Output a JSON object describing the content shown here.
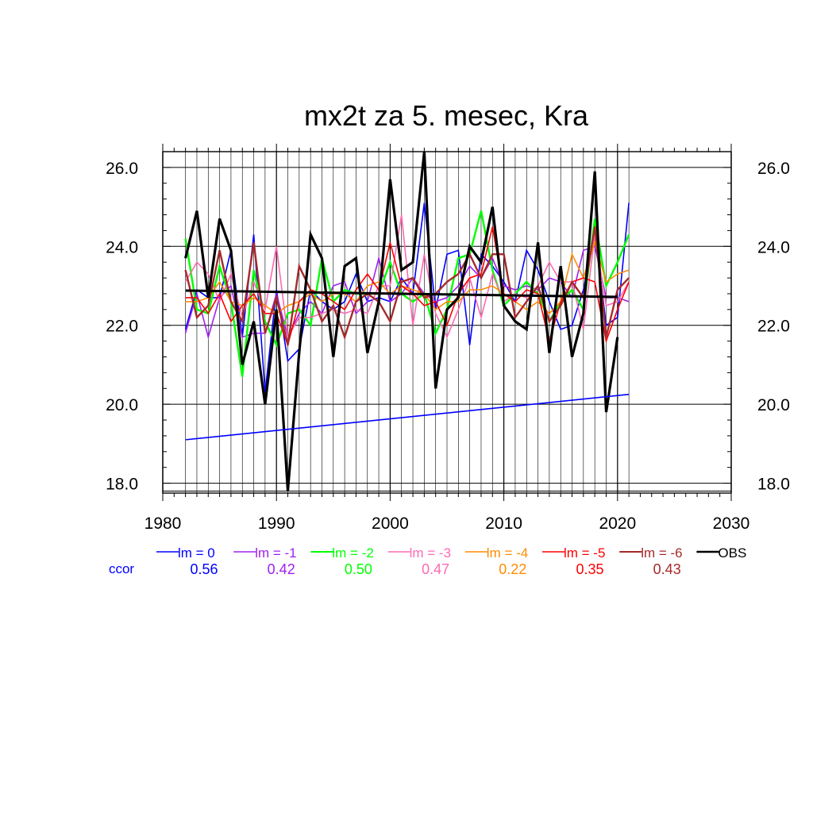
{
  "chart_data": {
    "type": "line",
    "title": "mx2t za 5. mesec, Kra",
    "xlabel": "",
    "ylabel": "",
    "xlim": [
      1980,
      2030
    ],
    "ylim": [
      17.75,
      26.4
    ],
    "x_ticks": [
      1980,
      1990,
      2000,
      2010,
      2020,
      2030
    ],
    "y_ticks": [
      18.0,
      20.0,
      22.0,
      24.0,
      26.0
    ],
    "y_tick_labels": [
      "18.0",
      "20.0",
      "22.0",
      "24.0",
      "26.0"
    ],
    "grid": true,
    "legend_position": "bottom",
    "ccor_label": "ccor",
    "x": [
      1982,
      1983,
      1984,
      1985,
      1986,
      1987,
      1988,
      1989,
      1990,
      1991,
      1992,
      1993,
      1994,
      1995,
      1996,
      1997,
      1998,
      1999,
      2000,
      2001,
      2002,
      2003,
      2004,
      2005,
      2006,
      2007,
      2008,
      2009,
      2010,
      2011,
      2012,
      2013,
      2014,
      2015,
      2016,
      2017,
      2018,
      2019,
      2020,
      2021
    ],
    "series": [
      {
        "name": "lm = 0",
        "color": "#0000ff",
        "ccor": "0.56",
        "width": 1.6,
        "values": [
          21.9,
          22.9,
          22.7,
          22.7,
          23.9,
          21.7,
          24.3,
          20.3,
          22.9,
          21.1,
          21.4,
          22.9,
          22.6,
          22.4,
          22.6,
          23.3,
          22.6,
          22.7,
          22.6,
          23.2,
          22.8,
          25.1,
          22.4,
          23.8,
          23.9,
          21.5,
          23.8,
          23.5,
          23.1,
          22.6,
          23.9,
          23.4,
          22.6,
          21.9,
          22.0,
          22.9,
          24.4,
          22.0,
          22.2,
          25.1
        ]
      },
      {
        "name": "lm = -1",
        "color": "#a020f0",
        "ccor": "0.42",
        "width": 1.6,
        "values": [
          21.8,
          22.8,
          21.7,
          22.7,
          23.0,
          21.7,
          21.8,
          21.8,
          22.8,
          21.7,
          22.3,
          22.6,
          22.3,
          23.0,
          23.1,
          22.3,
          22.6,
          23.7,
          22.6,
          22.8,
          23.2,
          22.8,
          22.6,
          22.7,
          23.0,
          23.5,
          23.2,
          23.7,
          23.0,
          22.9,
          23.0,
          22.9,
          23.2,
          23.1,
          22.7,
          23.9,
          24.0,
          22.7,
          22.7,
          22.6
        ]
      },
      {
        "name": "lm = -2",
        "color": "#00ff00",
        "ccor": "0.50",
        "width": 2.4,
        "values": [
          24.2,
          22.4,
          22.3,
          23.5,
          22.6,
          20.7,
          23.4,
          22.1,
          21.5,
          22.3,
          22.4,
          22.0,
          23.7,
          22.6,
          22.9,
          22.8,
          22.8,
          22.8,
          23.6,
          22.8,
          22.6,
          22.8,
          21.8,
          22.4,
          23.7,
          23.8,
          24.9,
          23.4,
          22.5,
          22.8,
          23.1,
          22.8,
          22.1,
          22.6,
          22.9,
          22.4,
          24.7,
          23.0,
          23.6,
          24.3
        ]
      },
      {
        "name": "lm = -3",
        "color": "#ff69b4",
        "ccor": "0.47",
        "width": 1.6,
        "values": [
          23.1,
          23.6,
          23.3,
          22.6,
          23.3,
          22.2,
          23.1,
          22.4,
          24.0,
          21.7,
          22.2,
          22.2,
          22.3,
          22.4,
          22.3,
          22.4,
          22.3,
          23.0,
          23.0,
          24.8,
          22.0,
          23.8,
          22.3,
          21.7,
          22.4,
          23.2,
          22.2,
          23.3,
          22.6,
          22.8,
          22.7,
          23.0,
          23.6,
          23.1,
          23.1,
          21.9,
          24.3,
          22.5,
          22.6,
          23.1
        ]
      },
      {
        "name": "lm = -4",
        "color": "#ff8c00",
        "ccor": "0.22",
        "width": 1.6,
        "values": [
          22.6,
          22.6,
          22.7,
          23.1,
          22.6,
          22.5,
          22.7,
          22.5,
          22.3,
          22.5,
          22.6,
          22.8,
          22.6,
          22.8,
          22.8,
          22.6,
          23.0,
          23.1,
          22.8,
          23.0,
          22.9,
          22.8,
          22.4,
          22.6,
          22.6,
          22.9,
          22.9,
          23.0,
          22.8,
          22.6,
          22.4,
          22.6,
          22.3,
          22.6,
          23.8,
          23.2,
          24.1,
          23.1,
          23.3,
          23.4
        ]
      },
      {
        "name": "lm = -5",
        "color": "#ff0000",
        "ccor": "0.35",
        "width": 1.6,
        "values": [
          22.7,
          22.7,
          22.3,
          22.8,
          22.1,
          22.5,
          22.8,
          22.3,
          22.3,
          21.5,
          22.6,
          22.9,
          22.8,
          22.6,
          22.4,
          22.9,
          23.3,
          22.9,
          24.1,
          23.0,
          22.8,
          22.5,
          22.6,
          22.0,
          22.8,
          23.2,
          23.3,
          24.5,
          22.8,
          22.6,
          22.9,
          22.8,
          21.6,
          22.6,
          23.1,
          23.2,
          23.1,
          21.6,
          22.4,
          23.1
        ]
      },
      {
        "name": "lm = -6",
        "color": "#a52a2a",
        "ccor": "0.43",
        "width": 2.4,
        "values": [
          23.4,
          22.2,
          22.5,
          23.9,
          22.6,
          22.1,
          24.1,
          21.8,
          22.7,
          21.5,
          23.5,
          22.9,
          22.1,
          22.5,
          21.7,
          22.6,
          22.8,
          22.6,
          22.1,
          23.1,
          23.2,
          22.7,
          22.8,
          23.1,
          23.3,
          23.8,
          23.2,
          23.8,
          23.8,
          22.2,
          22.6,
          23.0,
          22.1,
          22.5,
          23.1,
          22.7,
          24.5,
          21.7,
          22.9,
          23.2
        ]
      },
      {
        "name": "OBS",
        "color": "#000000",
        "ccor": "",
        "width": 3.2,
        "values": [
          23.7,
          24.9,
          22.7,
          24.7,
          23.9,
          21.0,
          22.1,
          20.0,
          22.4,
          17.8,
          21.3,
          24.3,
          23.7,
          21.2,
          23.5,
          23.7,
          21.3,
          22.6,
          25.7,
          23.4,
          23.6,
          26.4,
          20.4,
          22.4,
          22.7,
          24.0,
          23.6,
          25.0,
          22.5,
          22.1,
          21.9,
          24.1,
          21.3,
          23.5,
          21.2,
          22.3,
          25.9,
          19.8,
          21.7,
          null
        ]
      }
    ],
    "trend_lines": [
      {
        "of": "OBS",
        "color": "#000000",
        "width": 3,
        "x": [
          1982,
          2020
        ],
        "y": [
          22.88,
          22.72
        ]
      },
      {
        "of": "lm = 0",
        "color": "#0000ff",
        "width": 1.6,
        "x": [
          1982,
          2021
        ],
        "y": [
          19.1,
          20.25
        ]
      }
    ]
  }
}
